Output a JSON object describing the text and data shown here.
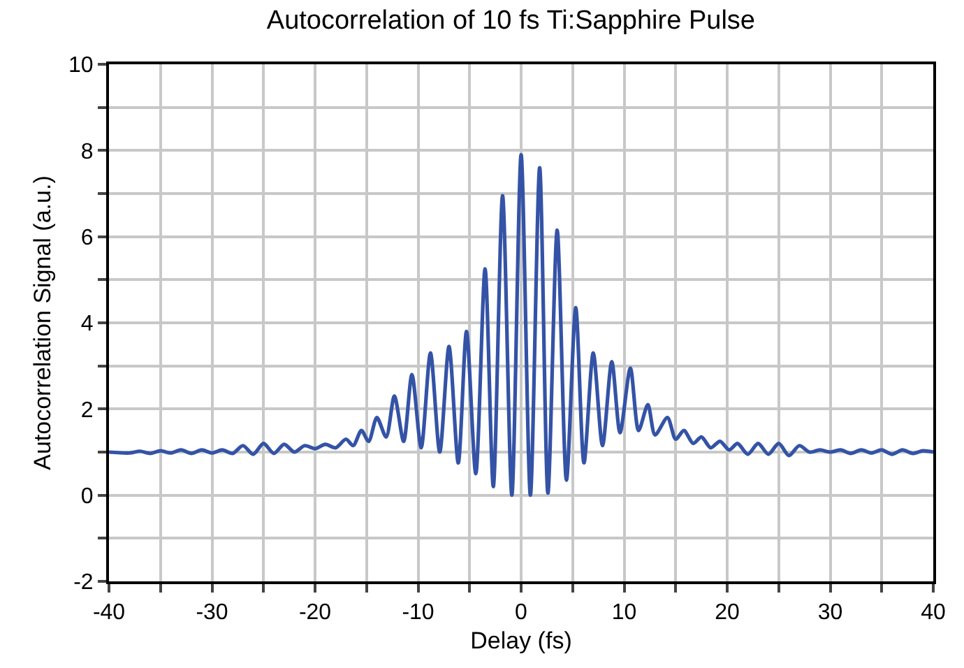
{
  "chart_data": {
    "type": "line",
    "title": "Autocorrelation of 10 fs Ti:Sapphire Pulse",
    "xlabel": "Delay (fs)",
    "ylabel": "Autocorrelation Signal (a.u.)",
    "x": [
      -40,
      -38,
      -37,
      -36,
      -35,
      -34,
      -33,
      -32,
      -31,
      -30,
      -29,
      -28,
      -27,
      -26,
      -25,
      -24,
      -23,
      -22,
      -21,
      -20,
      -19,
      -18,
      -17,
      -16.3,
      -15.5,
      -14.8,
      -14,
      -13.1,
      -12.3,
      -11.4,
      -10.6,
      -9.7,
      -8.8,
      -7.9,
      -7,
      -6.1,
      -5.3,
      -4.4,
      -3.5,
      -2.7,
      -1.8,
      -0.9,
      0,
      0.9,
      1.8,
      2.6,
      3.5,
      4.4,
      5.3,
      6.1,
      7,
      7.9,
      8.8,
      9.6,
      10.6,
      11.4,
      12.3,
      13,
      14.2,
      15,
      15.8,
      16.7,
      17.5,
      18.4,
      19.3,
      20.2,
      21,
      22,
      23,
      24,
      25,
      26,
      27,
      28,
      29,
      30,
      31,
      32,
      33,
      34,
      35,
      36,
      37,
      38,
      39,
      40
    ],
    "series": [
      {
        "color": "#3453a6",
        "values": [
          1.0,
          0.98,
          1.02,
          0.97,
          1.03,
          0.98,
          1.05,
          0.97,
          1.05,
          0.98,
          1.05,
          0.97,
          1.15,
          0.95,
          1.2,
          0.97,
          1.18,
          1.0,
          1.15,
          1.08,
          1.18,
          1.1,
          1.3,
          1.15,
          1.5,
          1.25,
          1.8,
          1.35,
          2.3,
          1.25,
          2.8,
          1.1,
          3.3,
          1.0,
          3.45,
          0.75,
          3.8,
          0.5,
          5.25,
          0.2,
          6.95,
          0.0,
          7.9,
          0.0,
          7.6,
          0.05,
          6.15,
          0.35,
          4.35,
          0.75,
          3.3,
          1.15,
          3.1,
          1.45,
          2.95,
          1.5,
          2.1,
          1.4,
          1.8,
          1.3,
          1.5,
          1.2,
          1.35,
          1.1,
          1.25,
          1.05,
          1.2,
          0.95,
          1.2,
          0.95,
          1.2,
          0.92,
          1.15,
          1.0,
          1.05,
          1.0,
          1.05,
          0.97,
          1.05,
          0.98,
          1.05,
          0.95,
          1.05,
          0.97,
          1.03,
          1.0
        ]
      }
    ],
    "xlim": [
      -40,
      40
    ],
    "ylim": [
      -2,
      10
    ],
    "xticks": [
      -40,
      {
        "value": -35,
        "label": null
      },
      -30,
      {
        "value": -25,
        "label": null
      },
      -20,
      {
        "value": -15,
        "label": null
      },
      -10,
      {
        "value": -5,
        "label": null
      },
      0,
      {
        "value": 5,
        "label": null
      },
      10,
      {
        "value": 15,
        "label": null
      },
      20,
      {
        "value": 25,
        "label": null
      },
      30,
      {
        "value": 35,
        "label": null
      },
      40
    ],
    "yticks": [
      -2,
      {
        "value": -1,
        "label": null
      },
      0,
      {
        "value": 1,
        "label": null
      },
      2,
      {
        "value": 3,
        "label": null
      },
      4,
      {
        "value": 5,
        "label": null
      },
      6,
      {
        "value": 7,
        "label": null
      },
      8,
      {
        "value": 9,
        "label": null
      },
      10
    ],
    "grid": true,
    "marker": "none",
    "line_style": "solid"
  }
}
